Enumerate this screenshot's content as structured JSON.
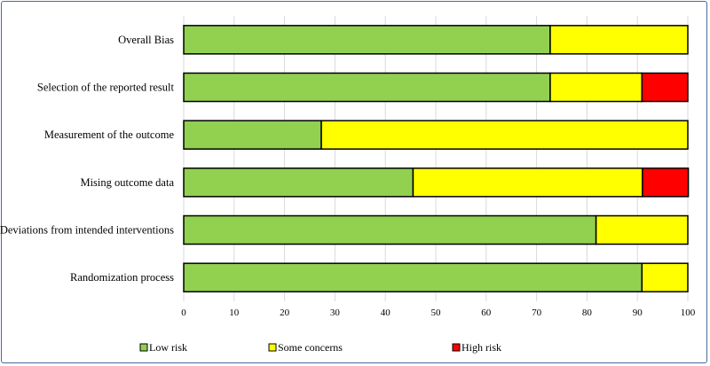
{
  "chart_data": {
    "type": "bar",
    "orientation": "horizontal",
    "stacked": true,
    "title": "",
    "xlabel": "",
    "ylabel": "",
    "xlim": [
      0,
      100
    ],
    "xticks": [
      0,
      10,
      20,
      30,
      40,
      50,
      60,
      70,
      80,
      90,
      100
    ],
    "grid": true,
    "legend_position": "bottom",
    "categories": [
      "Overall Bias",
      "Selection of the reported result",
      "Measurement of the outcome",
      "Mising outcome data",
      "Deviations from intended interventions",
      "Randomization process"
    ],
    "series": [
      {
        "name": "Low risk",
        "color": "#92d050",
        "values": [
          72.7,
          72.7,
          27.3,
          45.5,
          81.8,
          90.9
        ]
      },
      {
        "name": "Some concerns",
        "color": "#ffff00",
        "values": [
          27.3,
          18.2,
          72.7,
          45.5,
          18.2,
          9.1
        ]
      },
      {
        "name": "High risk",
        "color": "#ff0000",
        "values": [
          0,
          9.1,
          0,
          9.1,
          0,
          0
        ]
      }
    ]
  }
}
